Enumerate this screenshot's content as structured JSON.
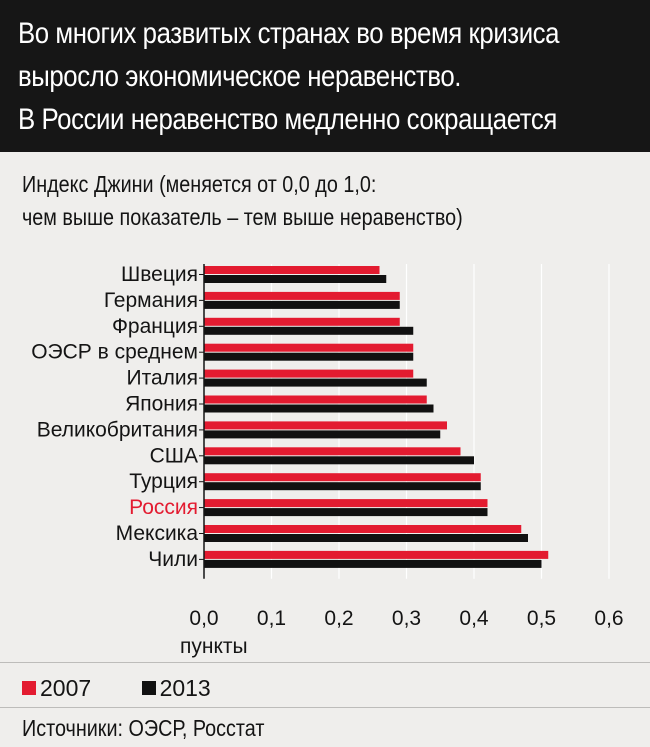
{
  "header": {
    "lines": [
      "Во многих развитых странах во время кризиса",
      "выросло экономическое неравенство.",
      "В России неравенство медленно сокращается"
    ]
  },
  "subtitle": {
    "lines": [
      "Индекс Джини (меняется от 0,0 до 1,0:",
      "чем выше показатель – тем выше неравенство)"
    ]
  },
  "colors": {
    "series_2007": "#e31b30",
    "series_2013": "#111111",
    "highlight": "#e31b30",
    "grid": "#ffffff",
    "header_bg": "#161616",
    "background": "#efeeec"
  },
  "chart_data": {
    "type": "bar",
    "orientation": "horizontal",
    "categories": [
      "Швеция",
      "Германия",
      "Франция",
      "ОЭСР в среднем",
      "Италия",
      "Япония",
      "Великобритания",
      "США",
      "Турция",
      "Россия",
      "Мексика",
      "Чили"
    ],
    "highlight_category": "Россия",
    "series": [
      {
        "name": "2007",
        "values": [
          0.26,
          0.29,
          0.29,
          0.31,
          0.31,
          0.33,
          0.36,
          0.38,
          0.41,
          0.42,
          0.47,
          0.51
        ]
      },
      {
        "name": "2013",
        "values": [
          0.27,
          0.29,
          0.31,
          0.31,
          0.33,
          0.34,
          0.35,
          0.4,
          0.41,
          0.42,
          0.48,
          0.5
        ]
      }
    ],
    "xlim": [
      0,
      0.6
    ],
    "xticks": [
      0,
      0.1,
      0.2,
      0.3,
      0.4,
      0.5,
      0.6
    ],
    "xtick_labels": [
      "0,0",
      "0,1",
      "0,2",
      "0,3",
      "0,4",
      "0,5",
      "0,6"
    ],
    "xlabel": "пункты",
    "grid": true,
    "legend_position": "bottom-left"
  },
  "legend": {
    "items": [
      {
        "label": "2007"
      },
      {
        "label": "2013"
      }
    ]
  },
  "source": "Источники: ОЭСР, Росстат"
}
